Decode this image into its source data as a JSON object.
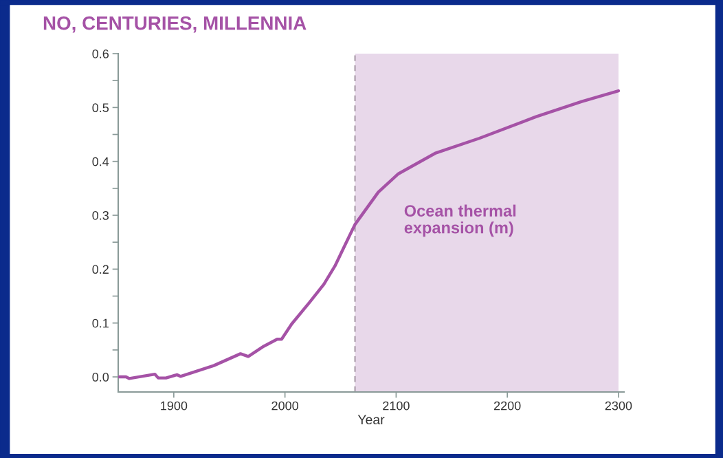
{
  "chart_data": {
    "type": "line",
    "title": "NO, CENTURIES, MILLENNIA",
    "xlabel": "Year",
    "x": [
      1851,
      1857,
      1860,
      1883,
      1886,
      1893,
      1903,
      1906,
      1936,
      1960,
      1967,
      1981,
      1993,
      1997,
      2006,
      2022,
      2035,
      2045,
      2055,
      2063,
      2084,
      2102,
      2135,
      2175,
      2226,
      2267,
      2300
    ],
    "series": [
      {
        "name": "Ocean thermal expansion (m)",
        "color": "#a552a6",
        "values": [
          0.0,
          0.0,
          -0.003,
          0.005,
          -0.002,
          -0.002,
          0.004,
          0.001,
          0.021,
          0.043,
          0.038,
          0.057,
          0.07,
          0.07,
          0.098,
          0.138,
          0.172,
          0.206,
          0.249,
          0.283,
          0.343,
          0.377,
          0.415,
          0.443,
          0.483,
          0.511,
          0.531
        ]
      }
    ],
    "xlim": [
      1850,
      2305
    ],
    "ylim": [
      -0.028,
      0.6
    ],
    "xticks": [
      1900,
      2000,
      2100,
      2200,
      2300
    ],
    "yticks": [
      {
        "value": 0.0,
        "label": "0.0"
      },
      {
        "value": 0.05,
        "label": null
      },
      {
        "value": 0.1,
        "label": "0.1"
      },
      {
        "value": 0.15,
        "label": null
      },
      {
        "value": 0.2,
        "label": "0.2"
      },
      {
        "value": 0.25,
        "label": null
      },
      {
        "value": 0.3,
        "label": "0.3"
      },
      {
        "value": 0.35,
        "label": null
      },
      {
        "value": 0.4,
        "label": "0.4"
      },
      {
        "value": 0.45,
        "label": null
      },
      {
        "value": 0.5,
        "label": "0.5"
      },
      {
        "value": 0.55,
        "label": null
      },
      {
        "value": 0.6,
        "label": "0.6"
      }
    ],
    "ref_lines": [
      {
        "axis": "x",
        "value": 2063,
        "color": "#a89aa8",
        "line_style": "dashed"
      }
    ],
    "bands": [
      {
        "axis": "x",
        "from": 2063,
        "to": 2300,
        "color": "#e8d8ea"
      }
    ],
    "grid": false,
    "legend": false,
    "marker": "none",
    "line_style": "solid"
  }
}
